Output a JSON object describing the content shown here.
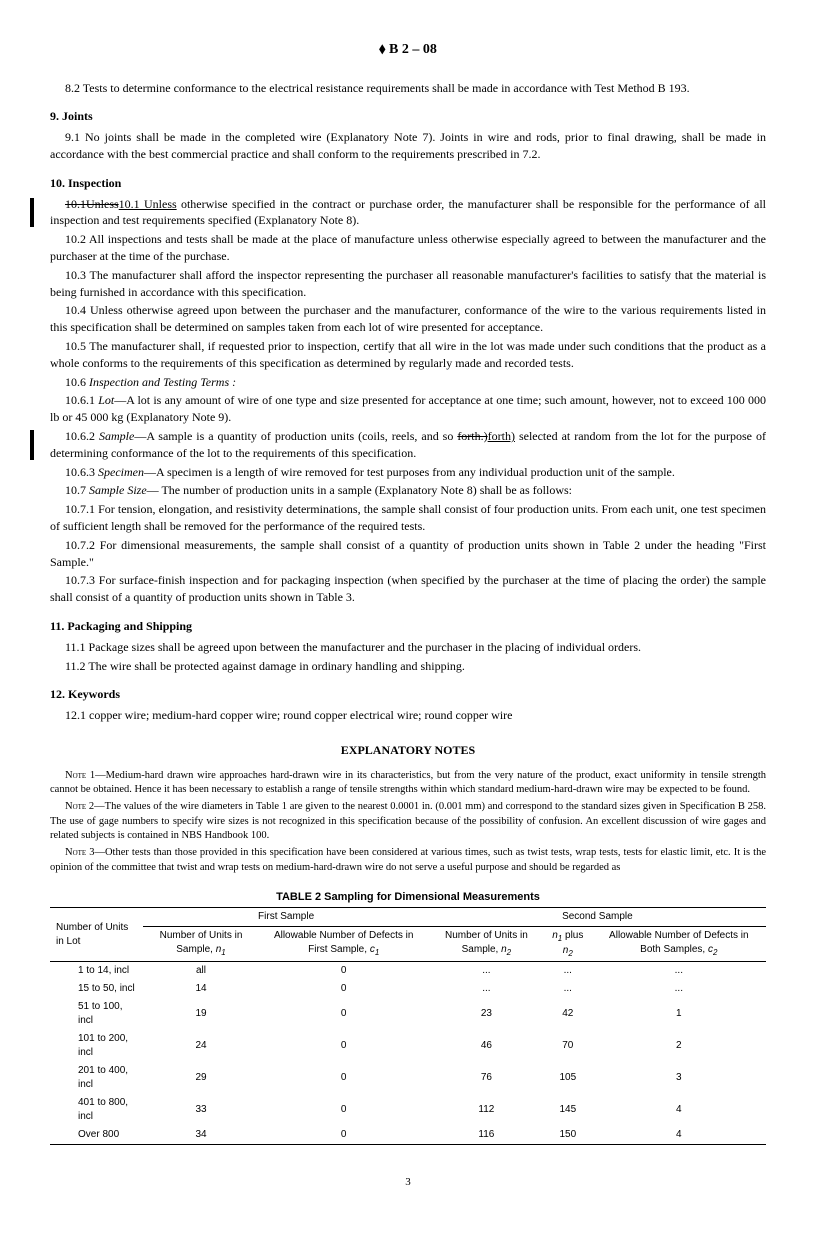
{
  "header": {
    "logo": "⬧",
    "designation": "B 2 – 08"
  },
  "s82": "8.2 Tests to determine conformance to the electrical resistance requirements shall be made in accordance with Test Method B 193.",
  "h9": "9.  Joints",
  "s91": "9.1 No joints shall be made in the completed wire (Explanatory Note 7). Joints in wire and rods, prior to final drawing, shall be made in accordance with the best commercial practice and shall conform to the requirements prescribed in 7.2.",
  "h10": "10.  Inspection",
  "s101_strike": "10.1Unless",
  "s101_under": "10.1  Unless",
  "s101_rest": " otherwise specified in the contract or purchase order, the manufacturer shall be responsible for the performance of all inspection and test requirements specified (Explanatory Note 8).",
  "s102": "10.2 All inspections and tests shall be made at the place of manufacture unless otherwise especially agreed to between the manufacturer and the purchaser at the time of the purchase.",
  "s103": "10.3 The manufacturer shall afford the inspector representing the purchaser all reasonable manufacturer's facilities to satisfy that the material is being furnished in accordance with this specification.",
  "s104": "10.4 Unless otherwise agreed upon between the purchaser and the manufacturer, conformance of the wire to the various requirements listed in this specification shall be determined on samples taken from each lot of wire presented for acceptance.",
  "s105": "10.5 The manufacturer shall, if requested prior to inspection, certify that all wire in the lot was made under such conditions that the product as a whole conforms to the requirements of this specification as determined by regularly made and recorded tests.",
  "s106_label": "10.6 ",
  "s106_italic": "Inspection and Testing Terms :",
  "s1061_label": "10.6.1 ",
  "s1061_italic": "Lot",
  "s1061_rest": "—A lot is any amount of wire of one type and size presented for acceptance at one time; such amount, however, not to exceed 100 000 lb or 45 000 kg (Explanatory Note 9).",
  "s1062_label": "10.6.2 ",
  "s1062_italic": "Sample",
  "s1062_rest1": "—A sample is a quantity of production units (coils, reels, and so ",
  "s1062_strike": "forth.)",
  "s1062_under": "forth)",
  "s1062_rest2": " selected at random from the lot for the purpose of determining conformance of the lot to the requirements of this specification.",
  "s1063_label": "10.6.3 ",
  "s1063_italic": "Specimen",
  "s1063_rest": "—A specimen is a length of wire removed for test purposes from any individual production unit of the sample.",
  "s107_label": "10.7 ",
  "s107_italic": "Sample Size",
  "s107_rest": "— The number of production units in a sample (Explanatory Note 8) shall be as follows:",
  "s1071": "10.7.1 For tension, elongation, and resistivity determinations, the sample shall consist of four production units. From each unit, one test specimen of sufficient length shall be removed for the performance of the required tests.",
  "s1072": "10.7.2 For dimensional measurements, the sample shall consist of a quantity of production units shown in Table 2 under the heading \"First Sample.\"",
  "s1073": "10.7.3 For surface-finish inspection and for packaging inspection (when specified by the purchaser at the time of placing the order) the sample shall consist of a quantity of production units shown in Table 3.",
  "h11": "11.  Packaging and Shipping",
  "s111": "11.1 Package sizes shall be agreed upon between the manufacturer and the purchaser in the placing of individual orders.",
  "s112": "11.2 The wire shall be protected against damage in ordinary handling and shipping.",
  "h12": "12.  Keywords",
  "s121": "12.1 copper wire; medium-hard copper wire; round copper electrical wire; round copper wire",
  "expl_title": "EXPLANATORY NOTES",
  "note1_label": "Note",
  "note1": " 1—Medium-hard drawn wire approaches hard-drawn wire in its characteristics, but from the very nature of the product, exact uniformity in tensile strength cannot be obtained. Hence it has been necessary to establish a range of tensile strengths within which standard medium-hard-drawn wire may be expected to be found.",
  "note2": " 2—The values of the wire diameters in Table 1 are given to the nearest 0.0001 in. (0.001 mm) and correspond to the standard sizes given in Specification B 258. The use of gage numbers to specify wire sizes is not recognized in this specification because of the possibility of confusion. An excellent discussion of wire gages and related subjects is contained in NBS Handbook 100.",
  "note3": " 3—Other tests than those provided in this specification have been considered at various times, such as twist tests, wrap tests, tests for elastic limit, etc. It is the opinion of the committee that twist and wrap tests on medium-hard-drawn wire do not serve a useful purpose and should be regarded as",
  "table": {
    "title": "TABLE 2  Sampling for Dimensional Measurements",
    "head_lot": "Number of Units in Lot",
    "head_first": "First Sample",
    "head_second": "Second Sample",
    "head_n1": "Number of Units in Sample, ",
    "head_n1_sub": "n",
    "head_n1_idx": "1",
    "head_c1": "Allowable Number of Defects in First Sample, ",
    "head_c1_sub": "c",
    "head_c1_idx": "1",
    "head_n2": "Number of Units in Sample, ",
    "head_n2_sub": "n",
    "head_n2_idx": "2",
    "head_n1n2_a": "n",
    "head_n1n2_i1": "1",
    "head_n1n2_mid": " plus ",
    "head_n1n2_b": "n",
    "head_n1n2_i2": "2",
    "head_c2": "Allowable Number of Defects in Both Samples, ",
    "head_c2_sub": "c",
    "head_c2_idx": "2",
    "rows": [
      {
        "lot": "1 to 14, incl",
        "n1": "all",
        "c1": "0",
        "n2": "...",
        "n1n2": "...",
        "c2": "..."
      },
      {
        "lot": "15 to 50, incl",
        "n1": "14",
        "c1": "0",
        "n2": "...",
        "n1n2": "...",
        "c2": "..."
      },
      {
        "lot": "51 to 100, incl",
        "n1": "19",
        "c1": "0",
        "n2": "23",
        "n1n2": "42",
        "c2": "1"
      },
      {
        "lot": "101 to 200, incl",
        "n1": "24",
        "c1": "0",
        "n2": "46",
        "n1n2": "70",
        "c2": "2"
      },
      {
        "lot": "201 to 400, incl",
        "n1": "29",
        "c1": "0",
        "n2": "76",
        "n1n2": "105",
        "c2": "3"
      },
      {
        "lot": "401 to 800, incl",
        "n1": "33",
        "c1": "0",
        "n2": "112",
        "n1n2": "145",
        "c2": "4"
      },
      {
        "lot": "Over 800",
        "n1": "34",
        "c1": "0",
        "n2": "116",
        "n1n2": "150",
        "c2": "4"
      }
    ]
  },
  "page_num": "3"
}
